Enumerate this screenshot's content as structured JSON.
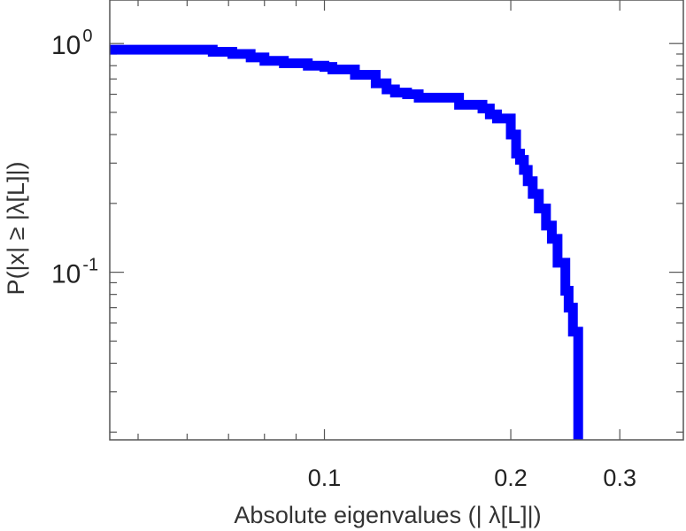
{
  "chart_data": {
    "type": "line",
    "style": "step",
    "xlabel": "Absolute eigenvalues (|     λ[L]|)",
    "ylabel": "P(|x|  ≥ |λ[L]|)",
    "x_scale": "log",
    "y_scale": "log",
    "xlim": [
      0.045,
      0.38
    ],
    "ylim": [
      0.0185,
      1.55
    ],
    "x_ticks": [
      {
        "value": 0.1,
        "label": "0.1"
      },
      {
        "value": 0.2,
        "label": "0.2"
      },
      {
        "value": 0.3,
        "label": "0.3"
      }
    ],
    "y_ticks": [
      {
        "value": 1,
        "base": "10",
        "exp": "0"
      },
      {
        "value": 0.1,
        "base": "10",
        "exp": "-1"
      }
    ],
    "grid": false,
    "line_color": "#0000ff",
    "series": [
      {
        "x": [
          0.045,
          0.066,
          0.071,
          0.076,
          0.08,
          0.086,
          0.094,
          0.1,
          0.103,
          0.112,
          0.121,
          0.126,
          0.13,
          0.136,
          0.142,
          0.165,
          0.18,
          0.185,
          0.19,
          0.2,
          0.204,
          0.207,
          0.21,
          0.213,
          0.217,
          0.222,
          0.228,
          0.233,
          0.238,
          0.245,
          0.248,
          0.252,
          0.257
        ],
        "y": [
          0.94,
          0.92,
          0.9,
          0.87,
          0.84,
          0.82,
          0.8,
          0.79,
          0.77,
          0.73,
          0.67,
          0.63,
          0.61,
          0.6,
          0.58,
          0.54,
          0.52,
          0.49,
          0.47,
          0.4,
          0.33,
          0.31,
          0.28,
          0.25,
          0.22,
          0.19,
          0.16,
          0.14,
          0.11,
          0.083,
          0.07,
          0.055,
          0.0185
        ]
      }
    ]
  }
}
